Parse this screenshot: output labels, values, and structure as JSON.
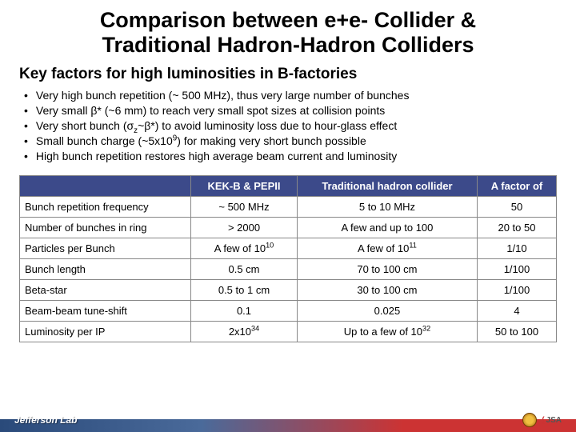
{
  "title_line1": "Comparison between e+e- Collider &",
  "title_line2": "Traditional Hadron-Hadron Colliders",
  "subtitle": "Key factors for high luminosities in B-factories",
  "bullets": [
    "Very high bunch repetition (~ 500 MHz), thus very large number of bunches",
    "Very small β* (~6 mm) to reach very small spot sizes at collision points",
    "Very short bunch (σ_z~β*) to avoid luminosity loss due to hour-glass effect",
    "Small bunch charge (~5x10^9) for making very short bunch possible",
    "High bunch repetition restores high average beam current and luminosity"
  ],
  "table": {
    "headers": [
      "",
      "KEK-B & PEPII",
      "Traditional hadron collider",
      "A factor of"
    ],
    "rows": [
      [
        "Bunch repetition frequency",
        "~ 500 MHz",
        "5 to 10 MHz",
        "50"
      ],
      [
        "Number of bunches in ring",
        "> 2000",
        "A few and up to 100",
        "20 to 50"
      ],
      [
        "Particles per Bunch",
        "A few of 10^10",
        "A few of 10^11",
        "1/10"
      ],
      [
        "Bunch length",
        "0.5 cm",
        "70 to 100 cm",
        "1/100"
      ],
      [
        "Beta-star",
        "0.5 to 1 cm",
        "30 to 100 cm",
        "1/100"
      ],
      [
        "Beam-beam tune-shift",
        "0.1",
        "0.025",
        "4"
      ],
      [
        "Luminosity per IP",
        "2x10^34",
        "Up to a few of 10^32",
        "50 to 100"
      ]
    ]
  },
  "footer_left": "Jefferson Lab",
  "footer_right": "JSA",
  "colors": {
    "header_bg": "#3c4a8a",
    "header_fg": "#ffffff",
    "border": "#888888"
  }
}
